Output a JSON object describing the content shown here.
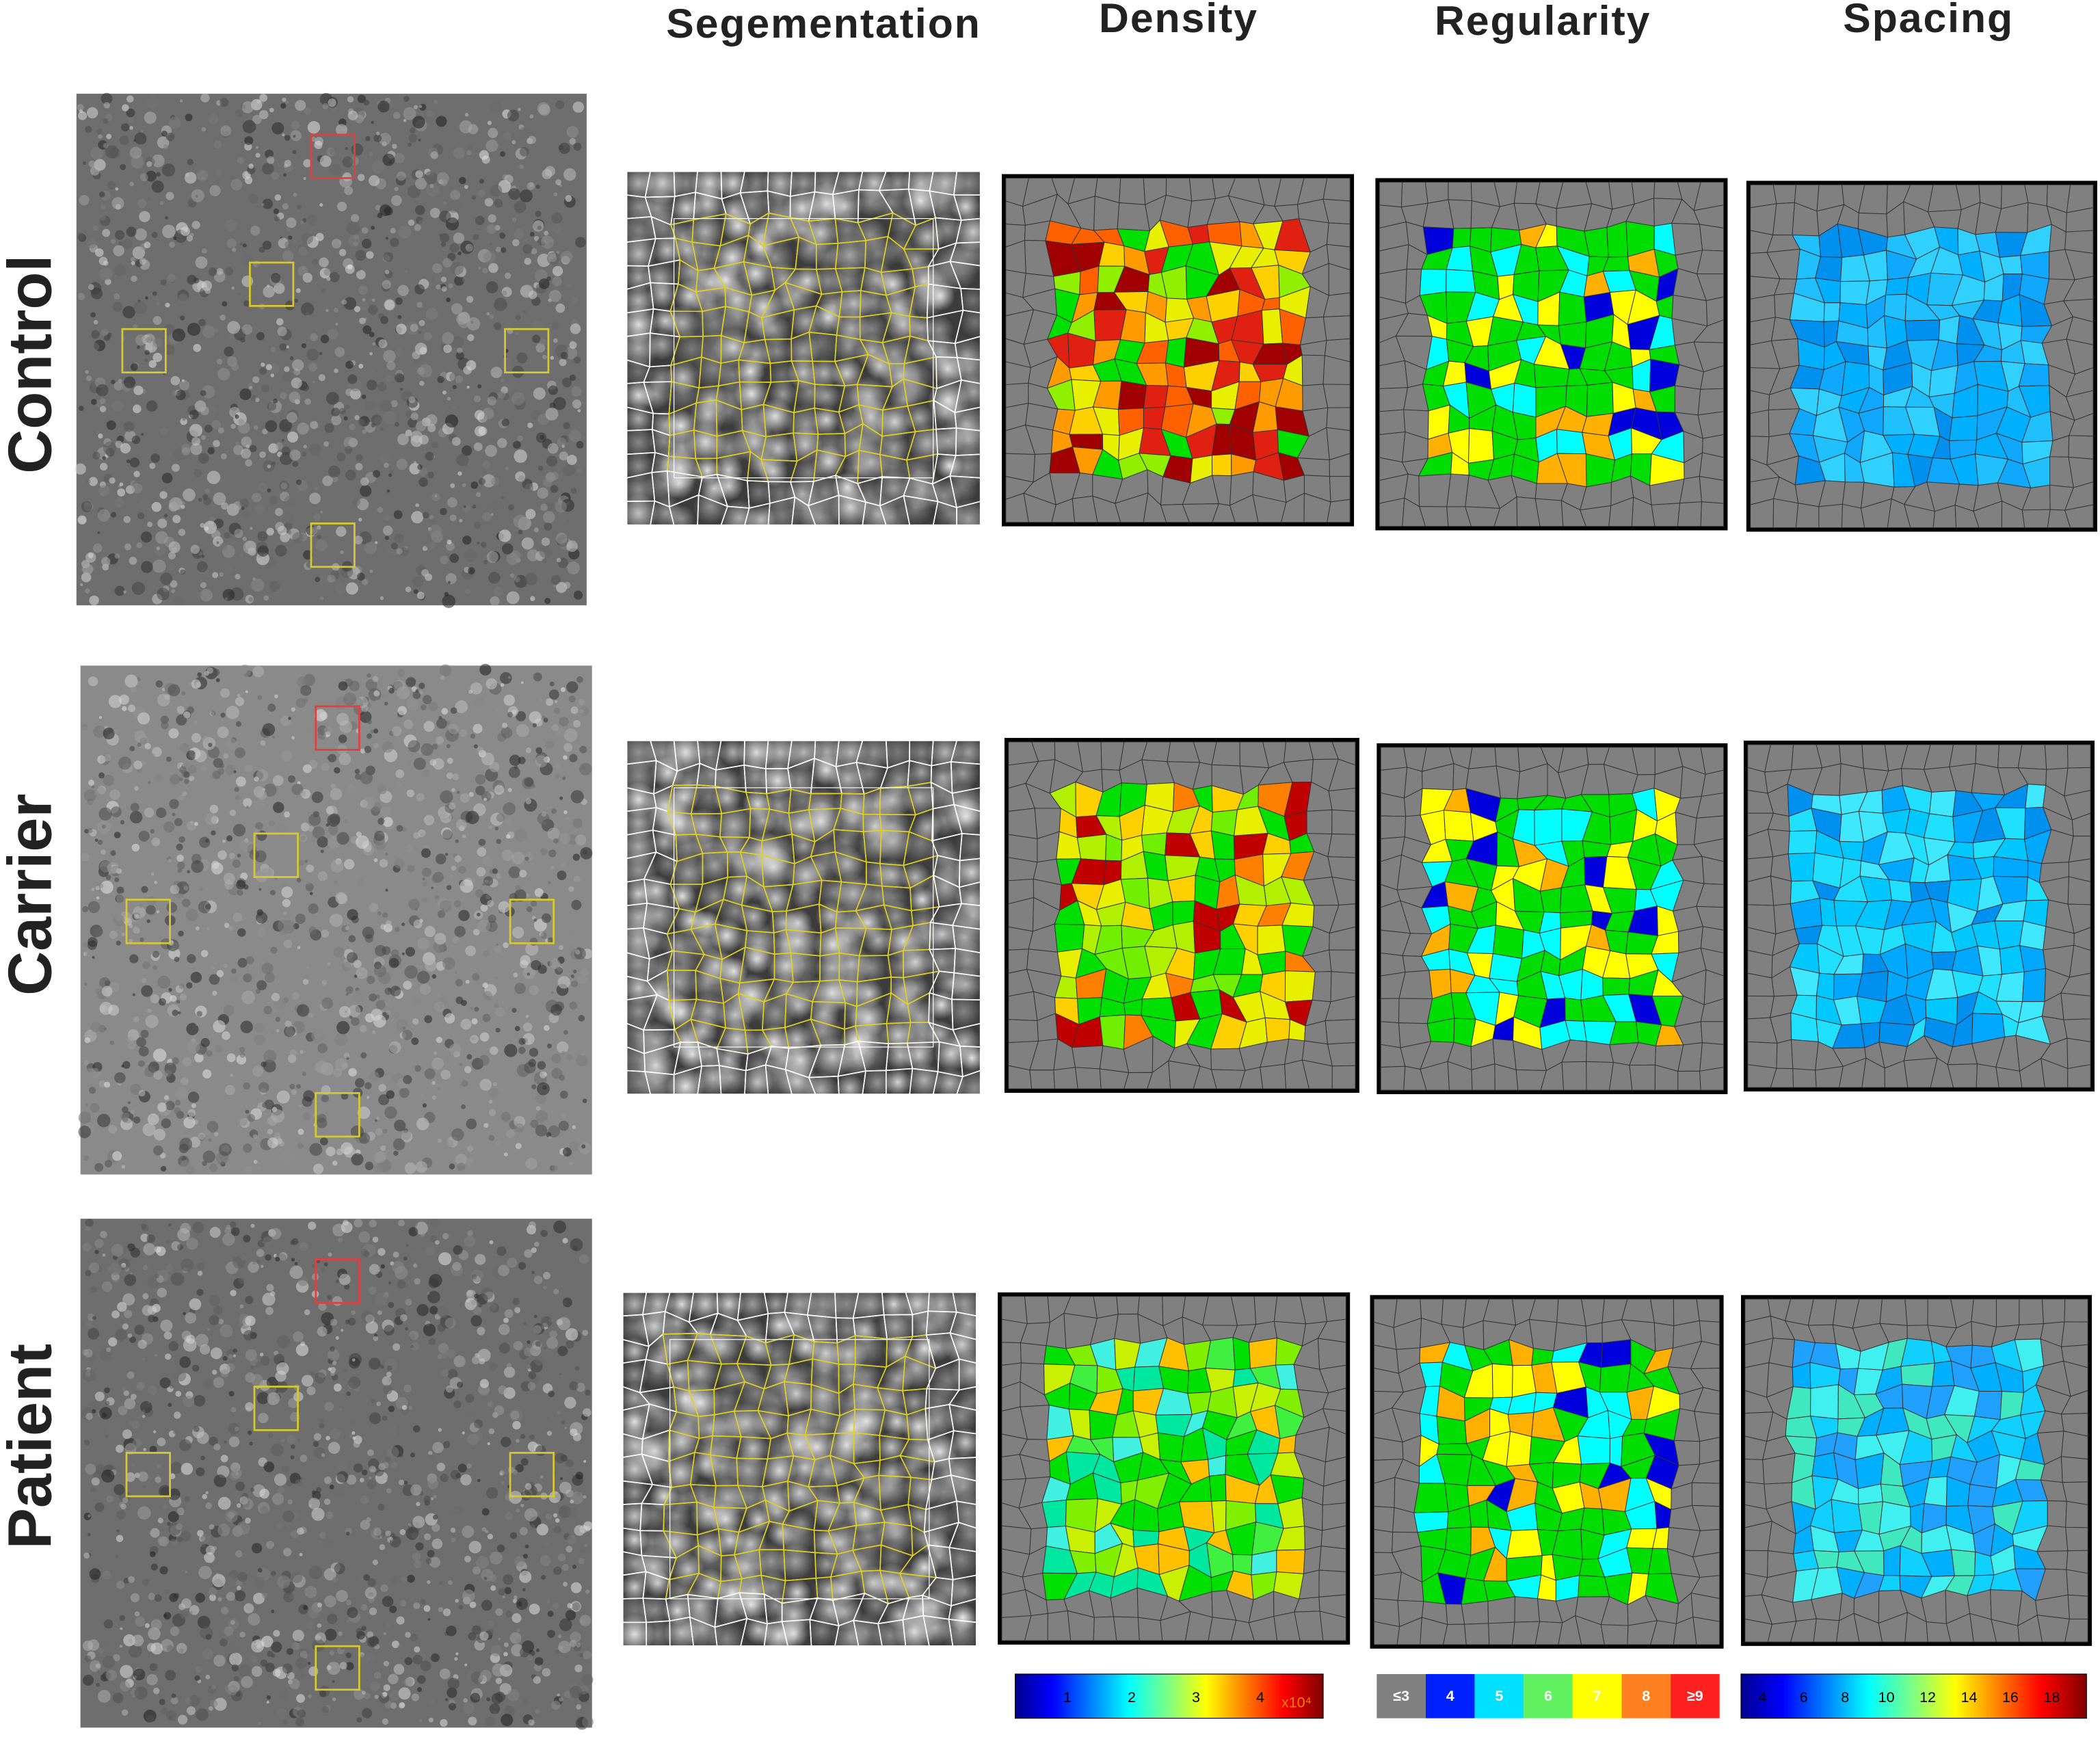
{
  "columns": [
    "Segementation",
    "Density",
    "Regularity",
    "Spacing"
  ],
  "rows": [
    "Control",
    "Carrier",
    "Patient"
  ],
  "colorbars": {
    "density": {
      "ticks": [
        1,
        2,
        3,
        4
      ],
      "unit": "x10⁴"
    },
    "regularity": {
      "ticks": [
        "≤3",
        4,
        5,
        6,
        7,
        8,
        "≥9"
      ]
    },
    "spacing": {
      "ticks": [
        4,
        6,
        8,
        10,
        12,
        14,
        16,
        18
      ]
    }
  }
}
